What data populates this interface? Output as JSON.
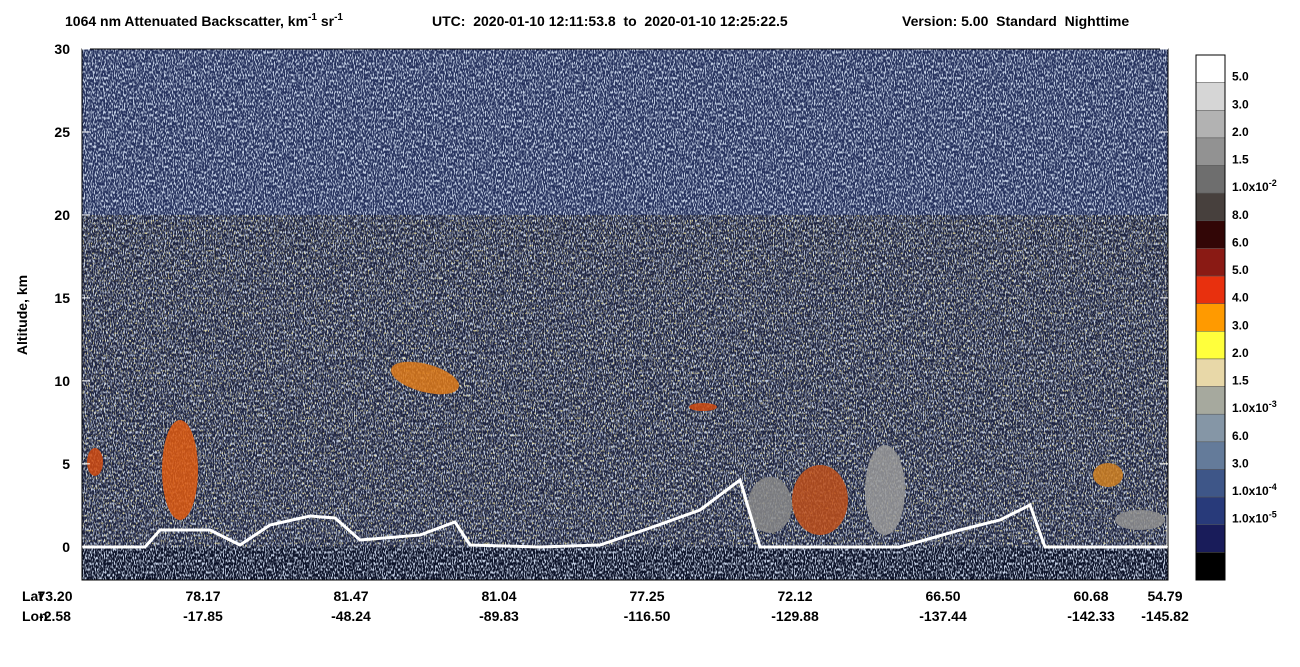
{
  "chart_data": {
    "type": "heatmap",
    "title": {
      "text": "1064 nm Attenuated Backscatter, km",
      "sup1": "-1",
      "text2": " sr",
      "sup2": "-1"
    },
    "time_range": "UTC:  2020-01-10 12:11:53.8  to  2020-01-10 12:25:22.5",
    "version": "Version: 5.00  Standard  Nighttime",
    "y_label": "Altitude, km",
    "ylim": [
      -2,
      30
    ],
    "yticks": [
      0,
      5,
      10,
      15,
      20,
      25,
      30
    ],
    "x_row_labels": [
      "Lat",
      "Lon"
    ],
    "lat": [
      "73.20",
      "78.17",
      "81.47",
      "81.04",
      "77.25",
      "72.12",
      "66.50",
      "60.68",
      "54.79"
    ],
    "lon": [
      "-2.58",
      "-17.85",
      "-48.24",
      "-89.83",
      "-116.50",
      "-129.88",
      "-137.44",
      "-142.33",
      "-145.82"
    ],
    "colorbar": {
      "colors": [
        "#ffffff",
        "#d6d6d6",
        "#b2b2b2",
        "#929292",
        "#6e6e6e",
        "#47403d",
        "#320606",
        "#8a1a14",
        "#e8300e",
        "#ff9a00",
        "#ffff3c",
        "#e8d8a8",
        "#a6a99e",
        "#8596a6",
        "#647b9a",
        "#3e5688",
        "#283a7a",
        "#191c5a",
        "#000000"
      ],
      "labels": [
        {
          "text": "5.0"
        },
        {
          "text": "3.0"
        },
        {
          "text": "2.0"
        },
        {
          "text": "1.5"
        },
        {
          "text": "1.0x10",
          "sup": "-2"
        },
        {
          "text": "8.0"
        },
        {
          "text": "6.0"
        },
        {
          "text": "5.0"
        },
        {
          "text": "4.0"
        },
        {
          "text": "3.0"
        },
        {
          "text": "2.0"
        },
        {
          "text": "1.5"
        },
        {
          "text": "1.0x10",
          "sup": "-3"
        },
        {
          "text": "6.0"
        },
        {
          "text": "3.0"
        },
        {
          "text": "1.0x10",
          "sup": "-4"
        },
        {
          "text": "1.0x10",
          "sup": "-5"
        }
      ]
    }
  }
}
